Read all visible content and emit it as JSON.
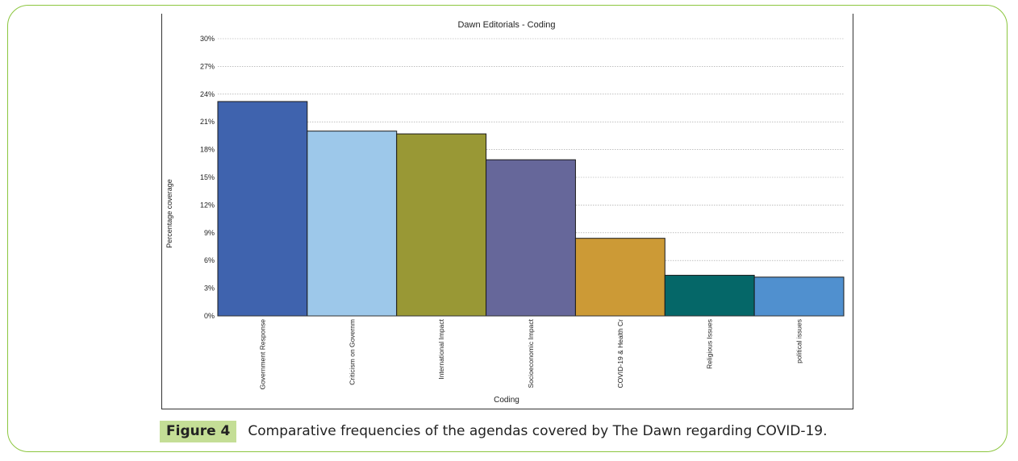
{
  "figure": {
    "label": "Figure 4",
    "caption": "Comparative frequencies of the agendas covered by The Dawn regarding COVID-19."
  },
  "colors": {
    "frame_border": "#8cc63f",
    "caption_label_bg": "#c4de96"
  },
  "chart_data": {
    "type": "bar",
    "title": "Dawn Editorials - Coding",
    "xlabel": "Coding",
    "ylabel": "Percentage coverage",
    "ylim": [
      0,
      30
    ],
    "yticks": [
      "0%",
      "3%",
      "6%",
      "9%",
      "12%",
      "15%",
      "18%",
      "21%",
      "24%",
      "27%",
      "30%"
    ],
    "grid": true,
    "categories": [
      "Government Response",
      "Criticism on Governm",
      "International Impact",
      "Socioeconomic Impact",
      "COVID-19 & Health Cr",
      "Religious Issues",
      "political issues"
    ],
    "values": [
      23.2,
      20.0,
      19.7,
      16.9,
      8.4,
      4.4,
      4.2
    ],
    "colors": [
      "#3f63ae",
      "#9dc8ea",
      "#999835",
      "#66679a",
      "#cc9a36",
      "#056768",
      "#5090cf"
    ]
  }
}
